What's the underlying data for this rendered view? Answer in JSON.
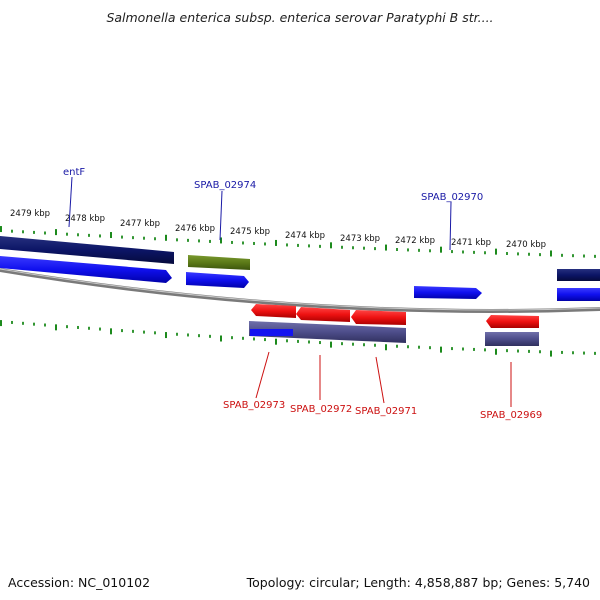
{
  "title": "Salmonella enterica subsp. enterica serovar Paratyphi B str....",
  "footer": {
    "accession": "Accession: NC_010102",
    "summary": "Topology: circular; Length: 4,858,887 bp; Genes: 5,740"
  },
  "scale_labels": [
    "2479 kbp",
    "2478 kbp",
    "2477 kbp",
    "2476 kbp",
    "2475 kbp",
    "2474 kbp",
    "2473 kbp",
    "2472 kbp",
    "2471 kbp",
    "2470 kbp"
  ],
  "gene_labels": {
    "forward": [
      "entF",
      "SPAB_02974",
      "SPAB_02970"
    ],
    "reverse": [
      "SPAB_02973",
      "SPAB_02972",
      "SPAB_02971",
      "SPAB_02969"
    ]
  },
  "colors": {
    "forward_label": "#1a1aa6",
    "reverse_label": "#cc1111",
    "forward_cds": "#1010ee",
    "reverse_cds": "#ee1111",
    "dark_feature": "#0c1566",
    "green_feature": "#5c7a18",
    "purple_feature": "#4d4d8a",
    "tick": "#1c8a1c",
    "backbone": "#8c8c8c"
  }
}
